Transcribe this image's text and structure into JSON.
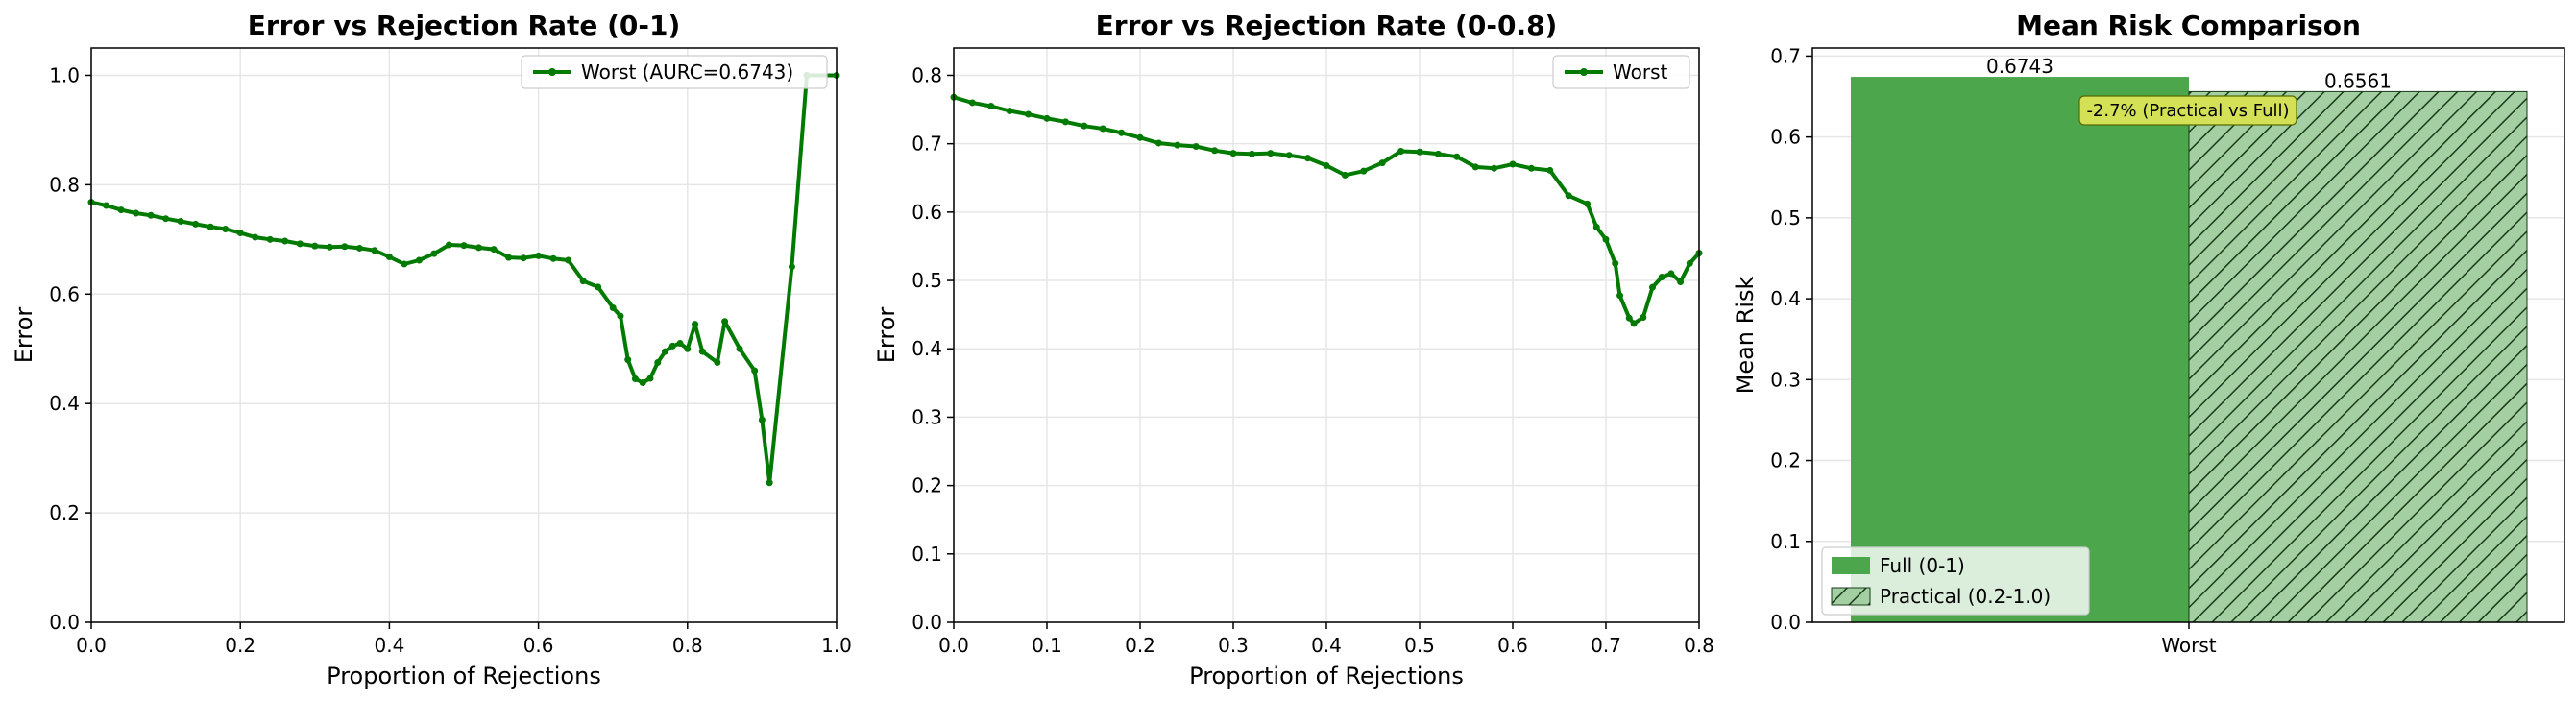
{
  "colors": {
    "line": "#007a00",
    "bar": "#4ca64c",
    "bar_hatched_fill": "#a3cfa3",
    "annotation_box": "#d4e157",
    "grid": "#e6e6e6",
    "axis": "#000000"
  },
  "chart_data": [
    {
      "type": "line",
      "title": "Error vs Rejection Rate (0-1)",
      "xlabel": "Proportion of Rejections",
      "ylabel": "Error",
      "xlim": [
        0,
        1
      ],
      "ylim": [
        0,
        1.05
      ],
      "xticks": [
        0,
        0.2,
        0.4,
        0.6,
        0.8,
        1.0
      ],
      "xtick_labels": [
        "0.0",
        "0.2",
        "0.4",
        "0.6",
        "0.8",
        "1.0"
      ],
      "yticks": [
        0,
        0.2,
        0.4,
        0.6,
        0.8,
        1.0
      ],
      "ytick_labels": [
        "0.0",
        "0.2",
        "0.4",
        "0.6",
        "0.8",
        "1.0"
      ],
      "grid": true,
      "legend_position": "top-right",
      "series": [
        {
          "name": "Worst (AURC=0.6743)",
          "points": [
            [
              0.0,
              0.768
            ],
            [
              0.02,
              0.762
            ],
            [
              0.04,
              0.754
            ],
            [
              0.06,
              0.748
            ],
            [
              0.08,
              0.744
            ],
            [
              0.1,
              0.738
            ],
            [
              0.12,
              0.733
            ],
            [
              0.14,
              0.728
            ],
            [
              0.16,
              0.723
            ],
            [
              0.18,
              0.719
            ],
            [
              0.2,
              0.712
            ],
            [
              0.22,
              0.704
            ],
            [
              0.24,
              0.7
            ],
            [
              0.26,
              0.697
            ],
            [
              0.28,
              0.692
            ],
            [
              0.3,
              0.688
            ],
            [
              0.32,
              0.686
            ],
            [
              0.34,
              0.687
            ],
            [
              0.36,
              0.684
            ],
            [
              0.38,
              0.68
            ],
            [
              0.4,
              0.668
            ],
            [
              0.42,
              0.655
            ],
            [
              0.44,
              0.662
            ],
            [
              0.46,
              0.674
            ],
            [
              0.48,
              0.69
            ],
            [
              0.5,
              0.689
            ],
            [
              0.52,
              0.685
            ],
            [
              0.54,
              0.682
            ],
            [
              0.56,
              0.667
            ],
            [
              0.58,
              0.666
            ],
            [
              0.6,
              0.67
            ],
            [
              0.62,
              0.665
            ],
            [
              0.64,
              0.662
            ],
            [
              0.66,
              0.624
            ],
            [
              0.68,
              0.613
            ],
            [
              0.7,
              0.575
            ],
            [
              0.71,
              0.56
            ],
            [
              0.72,
              0.48
            ],
            [
              0.73,
              0.445
            ],
            [
              0.74,
              0.438
            ],
            [
              0.75,
              0.446
            ],
            [
              0.76,
              0.475
            ],
            [
              0.77,
              0.495
            ],
            [
              0.78,
              0.505
            ],
            [
              0.79,
              0.51
            ],
            [
              0.8,
              0.5
            ],
            [
              0.81,
              0.545
            ],
            [
              0.82,
              0.495
            ],
            [
              0.84,
              0.475
            ],
            [
              0.85,
              0.55
            ],
            [
              0.87,
              0.5
            ],
            [
              0.89,
              0.46
            ],
            [
              0.9,
              0.37
            ],
            [
              0.91,
              0.255
            ],
            [
              0.94,
              0.65
            ],
            [
              0.96,
              1.0
            ],
            [
              1.0,
              1.0
            ]
          ]
        }
      ]
    },
    {
      "type": "line",
      "title": "Error vs Rejection Rate (0-0.8)",
      "xlabel": "Proportion of Rejections",
      "ylabel": "Error",
      "xlim": [
        0,
        0.8
      ],
      "ylim": [
        0,
        0.84
      ],
      "xticks": [
        0,
        0.1,
        0.2,
        0.3,
        0.4,
        0.5,
        0.6,
        0.7,
        0.8
      ],
      "xtick_labels": [
        "0.0",
        "0.1",
        "0.2",
        "0.3",
        "0.4",
        "0.5",
        "0.6",
        "0.7",
        "0.8"
      ],
      "yticks": [
        0,
        0.1,
        0.2,
        0.3,
        0.4,
        0.5,
        0.6,
        0.7,
        0.8
      ],
      "ytick_labels": [
        "0.0",
        "0.1",
        "0.2",
        "0.3",
        "0.4",
        "0.5",
        "0.6",
        "0.7",
        "0.8"
      ],
      "grid": true,
      "legend_position": "top-right",
      "series": [
        {
          "name": "Worst",
          "points": [
            [
              0.0,
              0.768
            ],
            [
              0.02,
              0.76
            ],
            [
              0.04,
              0.755
            ],
            [
              0.06,
              0.748
            ],
            [
              0.08,
              0.743
            ],
            [
              0.1,
              0.737
            ],
            [
              0.12,
              0.732
            ],
            [
              0.14,
              0.726
            ],
            [
              0.16,
              0.722
            ],
            [
              0.18,
              0.716
            ],
            [
              0.2,
              0.709
            ],
            [
              0.22,
              0.701
            ],
            [
              0.24,
              0.698
            ],
            [
              0.26,
              0.696
            ],
            [
              0.28,
              0.69
            ],
            [
              0.3,
              0.686
            ],
            [
              0.32,
              0.685
            ],
            [
              0.34,
              0.686
            ],
            [
              0.36,
              0.683
            ],
            [
              0.38,
              0.679
            ],
            [
              0.4,
              0.668
            ],
            [
              0.42,
              0.654
            ],
            [
              0.44,
              0.66
            ],
            [
              0.46,
              0.672
            ],
            [
              0.48,
              0.689
            ],
            [
              0.5,
              0.688
            ],
            [
              0.52,
              0.685
            ],
            [
              0.54,
              0.681
            ],
            [
              0.56,
              0.666
            ],
            [
              0.58,
              0.664
            ],
            [
              0.6,
              0.67
            ],
            [
              0.62,
              0.664
            ],
            [
              0.64,
              0.661
            ],
            [
              0.66,
              0.624
            ],
            [
              0.68,
              0.612
            ],
            [
              0.69,
              0.578
            ],
            [
              0.7,
              0.56
            ],
            [
              0.71,
              0.525
            ],
            [
              0.715,
              0.478
            ],
            [
              0.725,
              0.445
            ],
            [
              0.73,
              0.437
            ],
            [
              0.74,
              0.446
            ],
            [
              0.75,
              0.49
            ],
            [
              0.76,
              0.505
            ],
            [
              0.77,
              0.51
            ],
            [
              0.78,
              0.498
            ],
            [
              0.79,
              0.525
            ],
            [
              0.8,
              0.54
            ]
          ]
        }
      ]
    },
    {
      "type": "bar",
      "title": "Mean Risk Comparison",
      "xlabel": "",
      "ylabel": "Mean Risk",
      "categories": [
        "Worst"
      ],
      "ylim": [
        0,
        0.71
      ],
      "yticks": [
        0,
        0.1,
        0.2,
        0.3,
        0.4,
        0.5,
        0.6,
        0.7
      ],
      "ytick_labels": [
        "0.0",
        "0.1",
        "0.2",
        "0.3",
        "0.4",
        "0.5",
        "0.6",
        "0.7"
      ],
      "grid": true,
      "legend_position": "bottom-left",
      "series": [
        {
          "name": "Full (0-1)",
          "values": [
            0.6743
          ],
          "value_label": "0.6743",
          "hatched": false
        },
        {
          "name": "Practical (0.2-1.0)",
          "values": [
            0.6561
          ],
          "value_label": "0.6561",
          "hatched": true
        }
      ],
      "annotation": "-2.7% (Practical vs Full)"
    }
  ]
}
